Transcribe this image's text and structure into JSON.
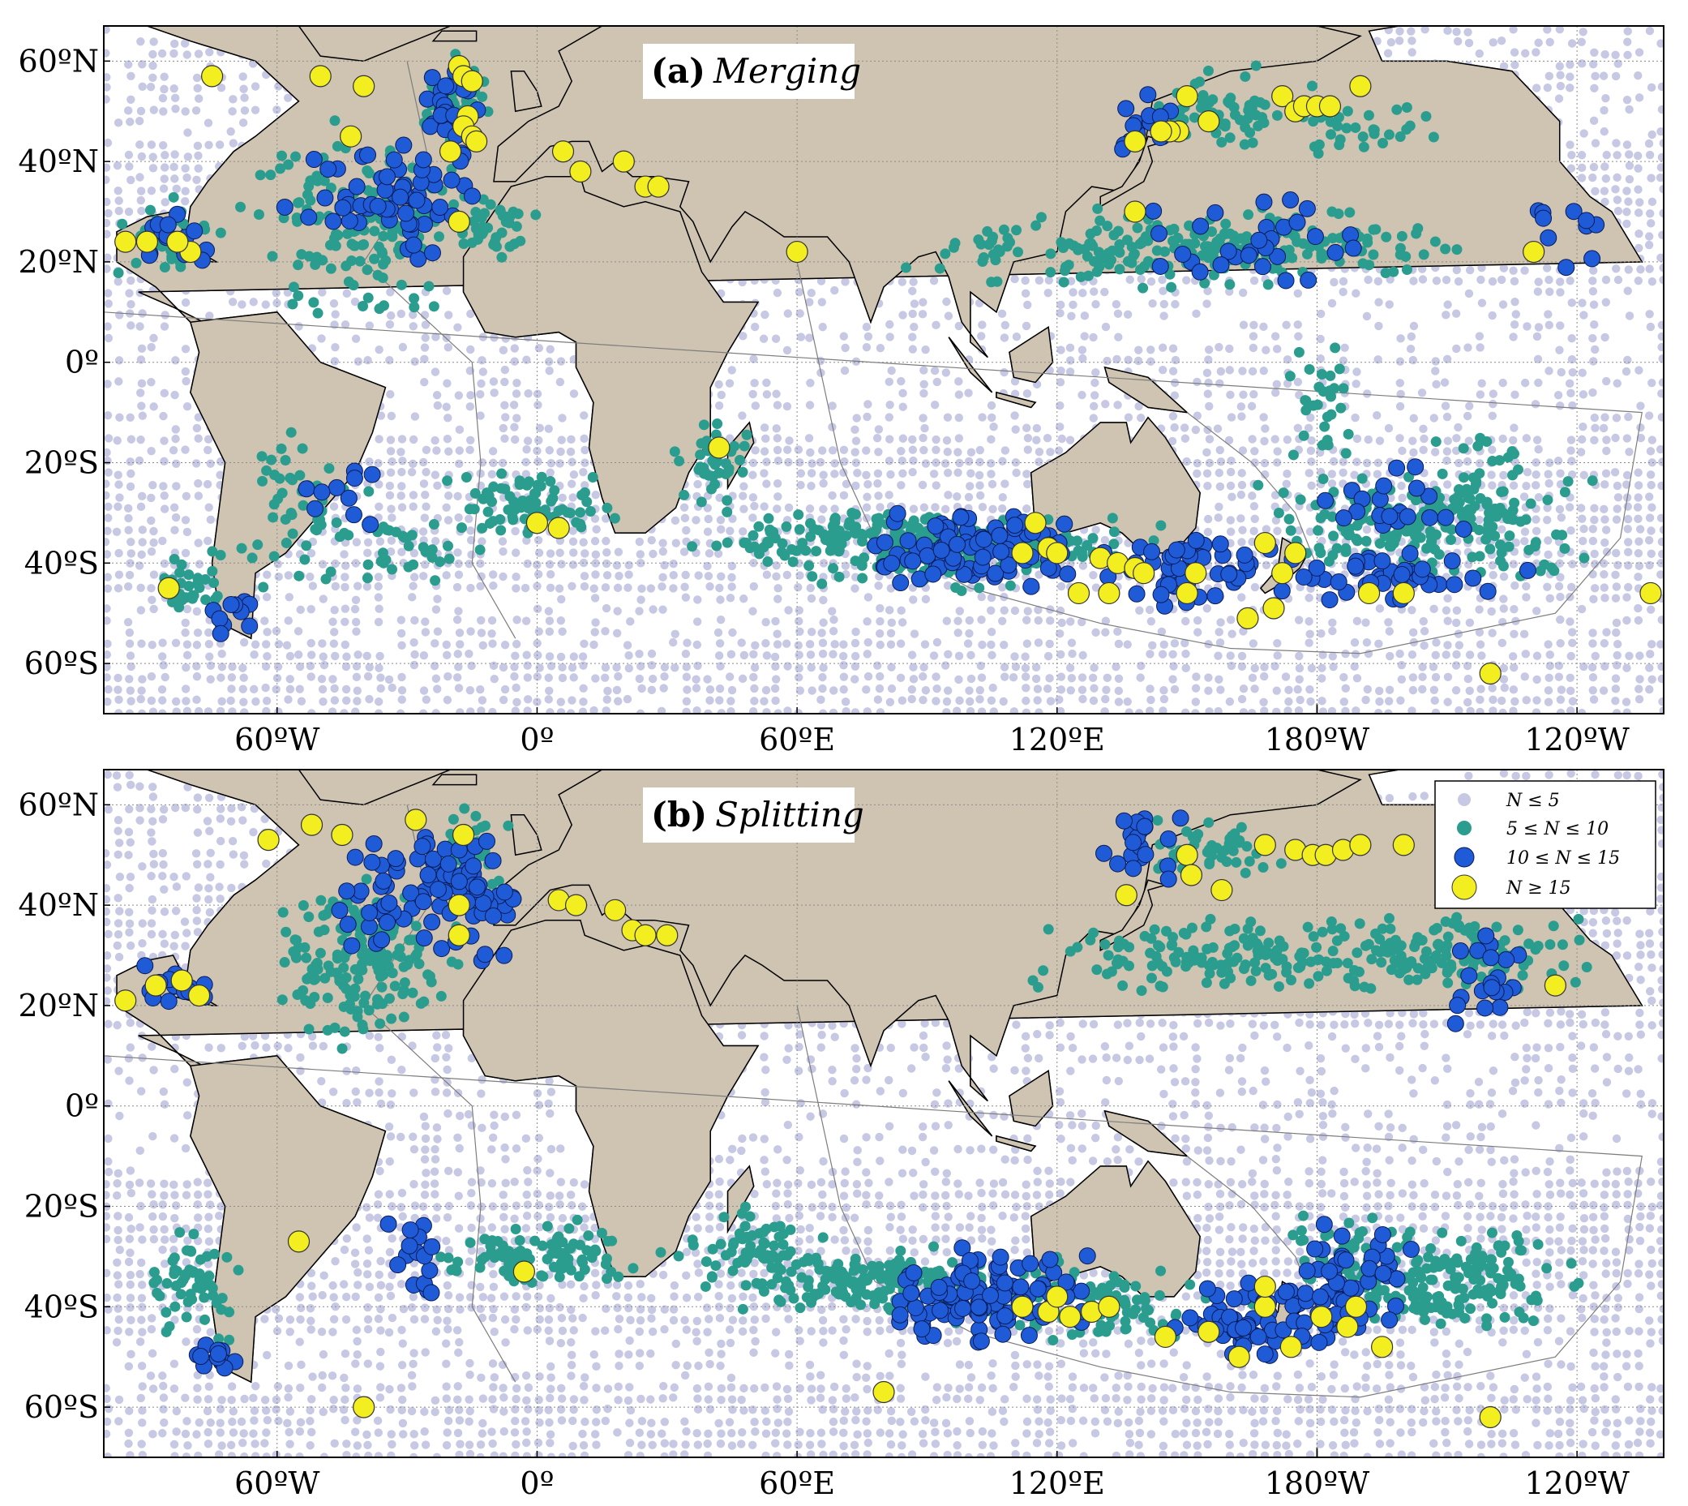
{
  "colors": {
    "land": "#cfc4b2",
    "ocean": "#ffffff",
    "n_le_5": "#c7c8e3",
    "n_5_10": "#2a9d8f",
    "n_10_15": "#1f5bd6",
    "n_ge_15": "#f2ee1f",
    "contour": "#7d7d7d",
    "coast": "#000000"
  },
  "panels": [
    {
      "label": "a",
      "title": "Merging",
      "clusters": {
        "n_5_10": [
          [
            -40,
            28,
            30,
            24,
            160
          ],
          [
            -20,
            52,
            10,
            10,
            50
          ],
          [
            -10,
            28,
            12,
            10,
            40
          ],
          [
            0,
            -28,
            25,
            10,
            80
          ],
          [
            40,
            -20,
            10,
            12,
            40
          ],
          [
            80,
            -35,
            50,
            8,
            180
          ],
          [
            150,
            23,
            80,
            10,
            240
          ],
          [
            160,
            50,
            30,
            10,
            60
          ],
          [
            100,
            -38,
            60,
            10,
            120
          ],
          [
            -160,
            -32,
            40,
            12,
            160
          ],
          [
            -55,
            -30,
            20,
            20,
            50
          ],
          [
            -85,
            25,
            15,
            10,
            40
          ],
          [
            -140,
            -30,
            30,
            20,
            80
          ],
          [
            -170,
            48,
            20,
            8,
            30
          ],
          [
            -80,
            -42,
            12,
            10,
            30
          ],
          [
            -30,
            -38,
            20,
            10,
            30
          ],
          [
            -178,
            -8,
            10,
            20,
            30
          ]
        ],
        "n_10_15": [
          [
            -35,
            32,
            25,
            15,
            60
          ],
          [
            -20,
            48,
            8,
            12,
            30
          ],
          [
            100,
            -37,
            25,
            8,
            90
          ],
          [
            150,
            -42,
            25,
            8,
            50
          ],
          [
            -160,
            -43,
            30,
            5,
            40
          ],
          [
            165,
            25,
            30,
            10,
            30
          ],
          [
            -160,
            -28,
            20,
            10,
            20
          ],
          [
            -70,
            -50,
            6,
            6,
            10
          ],
          [
            -45,
            -27,
            12,
            6,
            10
          ],
          [
            -85,
            25,
            10,
            6,
            15
          ],
          [
            140,
            48,
            10,
            8,
            15
          ],
          [
            -125,
            28,
            10,
            10,
            10
          ]
        ],
        "n_ge_15": [
          [
            -75,
            57
          ],
          [
            -50,
            57
          ],
          [
            -40,
            55
          ],
          [
            -43,
            45
          ],
          [
            -18,
            59
          ],
          [
            -17,
            57
          ],
          [
            -15,
            56
          ],
          [
            -16,
            49
          ],
          [
            -17,
            47
          ],
          [
            -15,
            45
          ],
          [
            -14,
            44
          ],
          [
            -20,
            42
          ],
          [
            -18,
            28
          ],
          [
            -90,
            24
          ],
          [
            -80,
            22
          ],
          [
            6,
            42
          ],
          [
            10,
            38
          ],
          [
            20,
            40
          ],
          [
            25,
            35
          ],
          [
            28,
            35
          ],
          [
            60,
            22
          ],
          [
            42,
            -17
          ],
          [
            0,
            -32
          ],
          [
            5,
            -33
          ],
          [
            -85,
            -45
          ],
          [
            115,
            -32
          ],
          [
            112,
            -38
          ],
          [
            118,
            -37
          ],
          [
            120,
            -38
          ],
          [
            130,
            -39
          ],
          [
            134,
            -40
          ],
          [
            138,
            -41
          ],
          [
            140,
            -42
          ],
          [
            132,
            -46
          ],
          [
            125,
            -46
          ],
          [
            152,
            -42
          ],
          [
            150,
            -46
          ],
          [
            168,
            -36
          ],
          [
            175,
            -38
          ],
          [
            170,
            -49
          ],
          [
            164,
            -51
          ],
          [
            150,
            53
          ],
          [
            155,
            48
          ],
          [
            148,
            46
          ],
          [
            146,
            46
          ],
          [
            144,
            46
          ],
          [
            138,
            44
          ],
          [
            138,
            30
          ],
          [
            172,
            53
          ],
          [
            175,
            50
          ],
          [
            177,
            51
          ],
          [
            180,
            51
          ],
          [
            183,
            51
          ],
          [
            190,
            55
          ],
          [
            -188,
            -42
          ],
          [
            -168,
            -46
          ],
          [
            -160,
            -46
          ],
          [
            -103,
            -46
          ],
          [
            -130,
            22
          ],
          [
            -95,
            24
          ],
          [
            -83,
            24
          ],
          [
            -140,
            -62
          ]
        ]
      }
    },
    {
      "label": "b",
      "title": "Splitting",
      "clusters": {
        "n_5_10": [
          [
            -40,
            30,
            25,
            20,
            180
          ],
          [
            -15,
            50,
            10,
            12,
            50
          ],
          [
            0,
            -30,
            30,
            8,
            100
          ],
          [
            80,
            -35,
            50,
            8,
            180
          ],
          [
            160,
            30,
            60,
            10,
            160
          ],
          [
            -150,
            30,
            40,
            12,
            120
          ],
          [
            -150,
            -35,
            40,
            12,
            180
          ],
          [
            130,
            -40,
            40,
            10,
            100
          ],
          [
            -80,
            -35,
            15,
            15,
            60
          ],
          [
            50,
            -28,
            20,
            10,
            60
          ],
          [
            155,
            52,
            25,
            8,
            50
          ],
          [
            -175,
            -30,
            15,
            12,
            40
          ]
        ],
        "n_10_15": [
          [
            -25,
            40,
            25,
            15,
            60
          ],
          [
            -15,
            45,
            8,
            10,
            30
          ],
          [
            105,
            -38,
            25,
            10,
            110
          ],
          [
            165,
            -42,
            20,
            8,
            60
          ],
          [
            -175,
            -40,
            15,
            8,
            40
          ],
          [
            -140,
            25,
            10,
            10,
            20
          ],
          [
            -85,
            24,
            10,
            5,
            15
          ],
          [
            -75,
            -50,
            8,
            8,
            12
          ],
          [
            -28,
            -30,
            8,
            10,
            15
          ],
          [
            140,
            50,
            10,
            8,
            20
          ],
          [
            -170,
            -30,
            15,
            10,
            20
          ]
        ],
        "n_ge_15": [
          [
            -88,
            24
          ],
          [
            -82,
            25
          ],
          [
            -78,
            22
          ],
          [
            -62,
            53
          ],
          [
            -52,
            56
          ],
          [
            -45,
            54
          ],
          [
            -28,
            57
          ],
          [
            -17,
            54
          ],
          [
            -18,
            40
          ],
          [
            -18,
            34
          ],
          [
            -55,
            -27
          ],
          [
            -3,
            -33
          ],
          [
            5,
            41
          ],
          [
            9,
            40
          ],
          [
            18,
            39
          ],
          [
            22,
            35
          ],
          [
            25,
            34
          ],
          [
            30,
            34
          ],
          [
            136,
            42
          ],
          [
            150,
            50
          ],
          [
            151,
            46
          ],
          [
            158,
            43
          ],
          [
            168,
            52
          ],
          [
            175,
            51
          ],
          [
            179,
            50
          ],
          [
            182,
            50
          ],
          [
            186,
            51
          ],
          [
            190,
            52
          ],
          [
            200,
            52
          ],
          [
            -125,
            24
          ],
          [
            -95,
            21
          ],
          [
            112,
            -40
          ],
          [
            118,
            -41
          ],
          [
            120,
            -38
          ],
          [
            123,
            -42
          ],
          [
            128,
            -41
          ],
          [
            132,
            -40
          ],
          [
            145,
            -46
          ],
          [
            155,
            -45
          ],
          [
            168,
            -40
          ],
          [
            168,
            -36
          ],
          [
            181,
            -42
          ],
          [
            189,
            -40
          ],
          [
            187,
            -44
          ],
          [
            174,
            -48
          ],
          [
            162,
            -50
          ],
          [
            -165,
            -48
          ],
          [
            -140,
            -62
          ],
          [
            80,
            -57
          ],
          [
            -40,
            -60
          ]
        ]
      }
    }
  ],
  "y_ticks": [
    "60ºN",
    "40ºN",
    "20ºN",
    "0º",
    "20ºS",
    "40ºS",
    "60ºS"
  ],
  "x_ticks": [
    "60ºW",
    "0º",
    "60ºE",
    "120ºE",
    "180ºW",
    "120ºW"
  ],
  "legend": {
    "items": [
      {
        "label": "N ≤ 5",
        "class": "n_le_5"
      },
      {
        "label": "5 ≤ N ≤ 10",
        "class": "n_5_10"
      },
      {
        "label": "10 ≤ N ≤ 15",
        "class": "n_10_15"
      },
      {
        "label": "N ≥ 15",
        "class": "n_ge_15"
      }
    ]
  }
}
